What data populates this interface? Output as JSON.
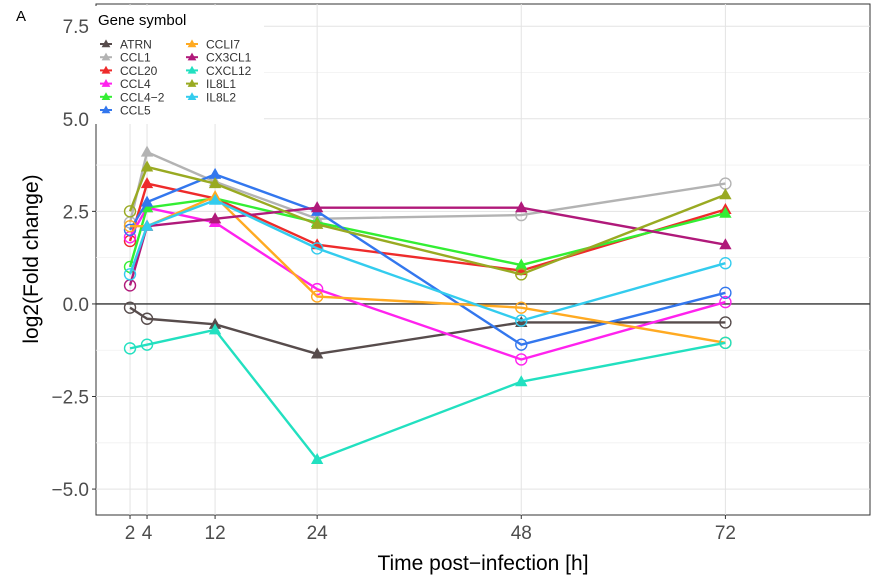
{
  "panel_label": "A",
  "chart_data": {
    "type": "line",
    "xlabel": "Time post−infection [h]",
    "ylabel": "log2(Fold change)",
    "x": [
      2,
      4,
      12,
      24,
      48,
      72
    ],
    "xticks": [
      2,
      4,
      12,
      24,
      48,
      72
    ],
    "xtick_labels": [
      "2",
      "4",
      "12",
      "24",
      "48",
      "72"
    ],
    "yticks": [
      -5.0,
      -2.5,
      0.0,
      2.5,
      5.0,
      7.5
    ],
    "ytick_labels": [
      "−5.0",
      "−2.5",
      "0.0",
      "2.5",
      "5.0",
      "7.5"
    ],
    "xlim": [
      -2,
      89
    ],
    "ylim": [
      -5.7,
      8.1
    ],
    "grid": true,
    "hline": 0,
    "legend": {
      "title": "Gene symbol",
      "placement": "top-left"
    },
    "series": [
      {
        "name": "ATRN",
        "color": "#574c4c",
        "values": [
          -0.1,
          -0.4,
          -0.55,
          -1.35,
          -0.5,
          -0.5
        ],
        "triangles": [
          false,
          false,
          true,
          true,
          true,
          false
        ]
      },
      {
        "name": "CCL1",
        "color": "#b3b3b3",
        "values": [
          2.2,
          4.1,
          3.3,
          2.3,
          2.4,
          3.25
        ],
        "triangles": [
          false,
          true,
          true,
          true,
          false,
          false
        ]
      },
      {
        "name": "CCL20",
        "color": "#ee2b2b",
        "values": [
          1.7,
          3.25,
          2.85,
          1.6,
          0.9,
          2.55
        ],
        "triangles": [
          false,
          true,
          true,
          true,
          true,
          true
        ]
      },
      {
        "name": "CCL4",
        "color": "#ff22ee",
        "values": [
          1.8,
          2.6,
          2.2,
          0.4,
          -1.5,
          0.05
        ],
        "triangles": [
          false,
          true,
          true,
          false,
          false,
          false
        ]
      },
      {
        "name": "CCL4−2",
        "color": "#33ee33",
        "values": [
          1.0,
          2.6,
          2.85,
          2.2,
          1.05,
          2.45
        ],
        "triangles": [
          false,
          true,
          true,
          true,
          true,
          true
        ]
      },
      {
        "name": "CCL5",
        "color": "#3377ee",
        "values": [
          2.0,
          2.75,
          3.5,
          2.5,
          -1.1,
          0.3
        ],
        "triangles": [
          false,
          true,
          true,
          true,
          false,
          false
        ]
      },
      {
        "name": "CCLI7",
        "color": "#ffaa22",
        "values": [
          2.1,
          2.1,
          2.9,
          0.2,
          -0.1,
          -1.05
        ],
        "triangles": [
          false,
          true,
          true,
          false,
          false,
          false
        ]
      },
      {
        "name": "CX3CL1",
        "color": "#b0197a",
        "values": [
          0.5,
          2.1,
          2.3,
          2.6,
          2.6,
          1.6
        ],
        "triangles": [
          false,
          true,
          true,
          true,
          true,
          true
        ]
      },
      {
        "name": "CXCL12",
        "color": "#22e0c0",
        "values": [
          -1.2,
          -1.1,
          -0.7,
          -4.2,
          -2.1,
          -1.05
        ],
        "triangles": [
          false,
          false,
          true,
          true,
          true,
          false
        ]
      },
      {
        "name": "IL8L1",
        "color": "#99aa22",
        "values": [
          2.5,
          3.7,
          3.25,
          2.15,
          0.8,
          2.95
        ],
        "triangles": [
          false,
          true,
          true,
          true,
          false,
          true
        ]
      },
      {
        "name": "IL8L2",
        "color": "#33ccee",
        "values": [
          0.8,
          2.1,
          2.8,
          1.5,
          -0.45,
          1.1
        ],
        "triangles": [
          false,
          true,
          true,
          false,
          false,
          false
        ]
      }
    ]
  }
}
